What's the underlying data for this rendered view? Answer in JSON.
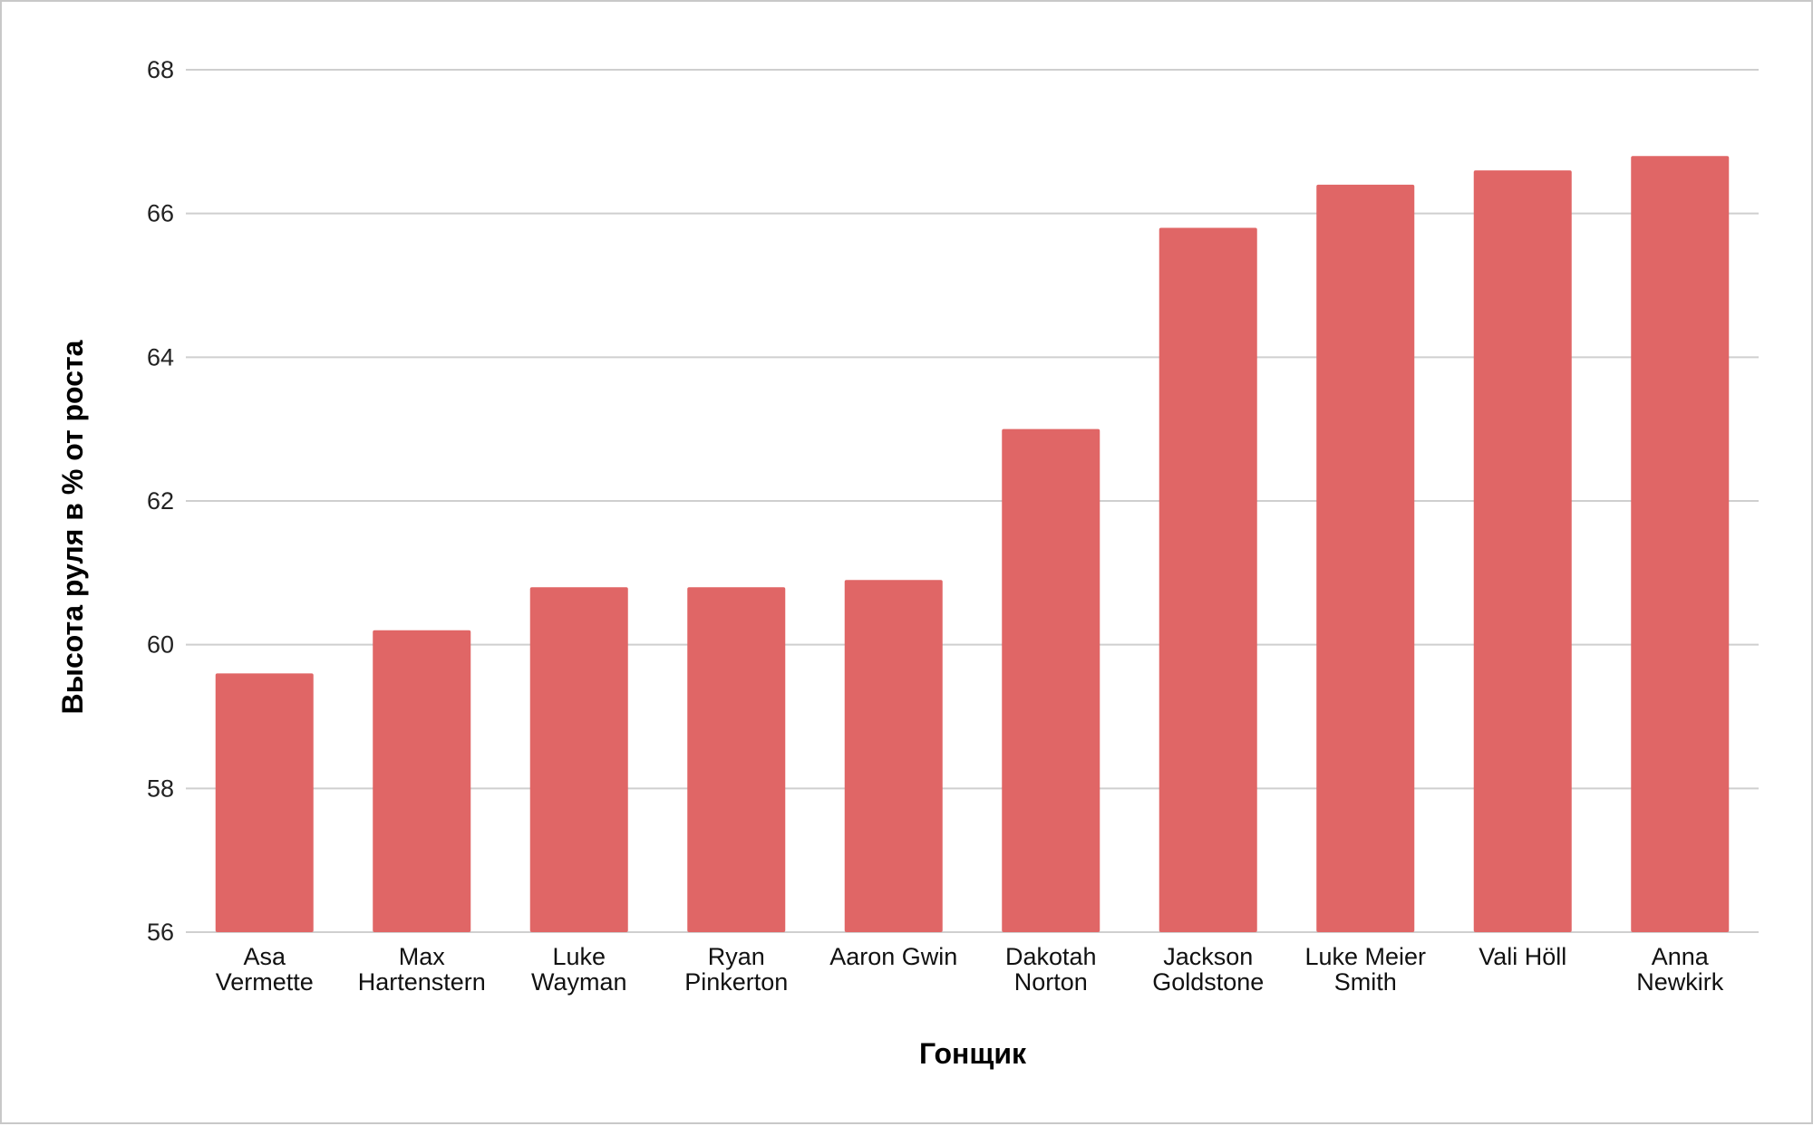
{
  "chart_data": {
    "type": "bar",
    "categories": [
      [
        "Asa",
        "Vermette"
      ],
      [
        "Max",
        "Hartenstern"
      ],
      [
        "Luke",
        "Wayman"
      ],
      [
        "Ryan",
        "Pinkerton"
      ],
      [
        "Aaron Gwin"
      ],
      [
        "Dakotah",
        "Norton"
      ],
      [
        "Jackson",
        "Goldstone"
      ],
      [
        "Luke Meier",
        "Smith"
      ],
      [
        "Vali Höll"
      ],
      [
        "Anna",
        "Newkirk"
      ]
    ],
    "values": [
      59.6,
      60.2,
      60.8,
      60.8,
      60.9,
      63.0,
      65.8,
      66.4,
      66.6,
      66.8
    ],
    "title": "",
    "xlabel": "Гонщик",
    "ylabel": "Высота руля в % от роста",
    "ylim": [
      56,
      68
    ],
    "yticks": [
      "56",
      "58",
      "60",
      "62",
      "64",
      "66",
      "68"
    ],
    "grid": true,
    "legend": "none",
    "bar_color": "#e06666"
  }
}
